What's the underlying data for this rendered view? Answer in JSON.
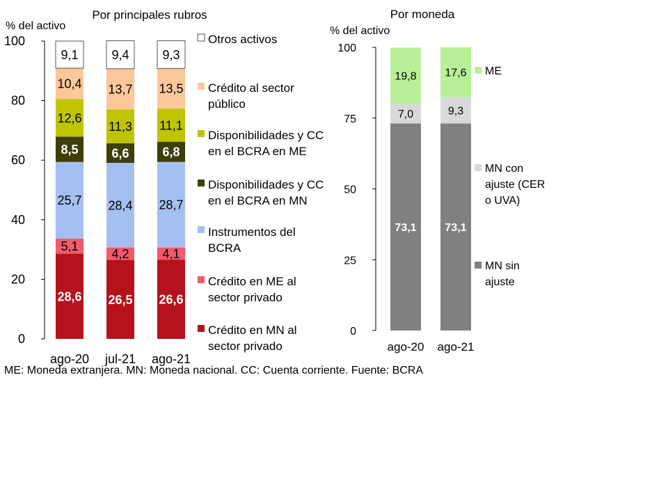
{
  "chart_data": [
    {
      "type": "bar",
      "title": "Por principales rubros",
      "ylabel": "% del activo",
      "ylim": [
        0,
        100
      ],
      "yticks": [
        0,
        20,
        40,
        60,
        80,
        100
      ],
      "categories": [
        "ago-20",
        "jul-21",
        "ago-21"
      ],
      "legend_position": "right",
      "series": [
        {
          "name": "Crédito en MN al sector privado",
          "values": [
            28.6,
            26.5,
            26.6
          ],
          "labels": [
            "28,6",
            "26,5",
            "26,6"
          ],
          "color": "#b5121b",
          "label_color": "#ffffff"
        },
        {
          "name": "Crédito en ME al sector privado",
          "values": [
            5.1,
            4.2,
            4.1
          ],
          "labels": [
            "5,1",
            "4,2",
            "4,1"
          ],
          "color": "#f05a6a",
          "label_color": "#000000"
        },
        {
          "name": "Instrumentos del BCRA",
          "values": [
            25.7,
            28.4,
            28.7
          ],
          "labels": [
            "25,7",
            "28,4",
            "28,7"
          ],
          "color": "#a5bff0",
          "label_color": "#000000"
        },
        {
          "name": "Disponibilidades y CC en el BCRA en MN",
          "values": [
            8.5,
            6.6,
            6.8
          ],
          "labels": [
            "8,5",
            "6,6",
            "6,8"
          ],
          "color": "#3d3e0a",
          "label_color": "#ffffff"
        },
        {
          "name": "Disponibilidades y CC en el BCRA en ME",
          "values": [
            12.6,
            11.3,
            11.1
          ],
          "labels": [
            "12,6",
            "11,3",
            "11,1"
          ],
          "color": "#bfc400",
          "label_color": "#000000"
        },
        {
          "name": "Crédito al sector público",
          "values": [
            10.4,
            13.7,
            13.5
          ],
          "labels": [
            "10,4",
            "13,7",
            "13,5"
          ],
          "color": "#fcc79a",
          "label_color": "#000000"
        },
        {
          "name": "Otros activos",
          "values": [
            9.1,
            9.4,
            9.3
          ],
          "labels": [
            "9,1",
            "9,4",
            "9,3"
          ],
          "color": "#ffffff",
          "label_color": "#000000",
          "outlined": true
        }
      ]
    },
    {
      "type": "bar",
      "title": "Por moneda",
      "ylabel": "% del activo",
      "ylim": [
        0,
        100
      ],
      "yticks": [
        0,
        25,
        50,
        75,
        100
      ],
      "categories": [
        "ago-20",
        "ago-21"
      ],
      "legend_position": "right",
      "series": [
        {
          "name": "MN sin ajuste",
          "values": [
            73.1,
            73.1
          ],
          "labels": [
            "73,1",
            "73,1"
          ],
          "color": "#808080",
          "label_color": "#ffffff"
        },
        {
          "name": "MN con ajuste (CER o UVA)",
          "values": [
            7.0,
            9.3
          ],
          "labels": [
            "7,0",
            "9,3"
          ],
          "color": "#d9d9d9",
          "label_color": "#000000"
        },
        {
          "name": "ME",
          "values": [
            19.8,
            17.6
          ],
          "labels": [
            "19,8",
            "17,6"
          ],
          "color": "#b8f09a",
          "label_color": "#000000"
        }
      ]
    }
  ],
  "footnote": "ME: Moneda extranjera. MN: Moneda nacional. CC: Cuenta corriente. Fuente: BCRA"
}
